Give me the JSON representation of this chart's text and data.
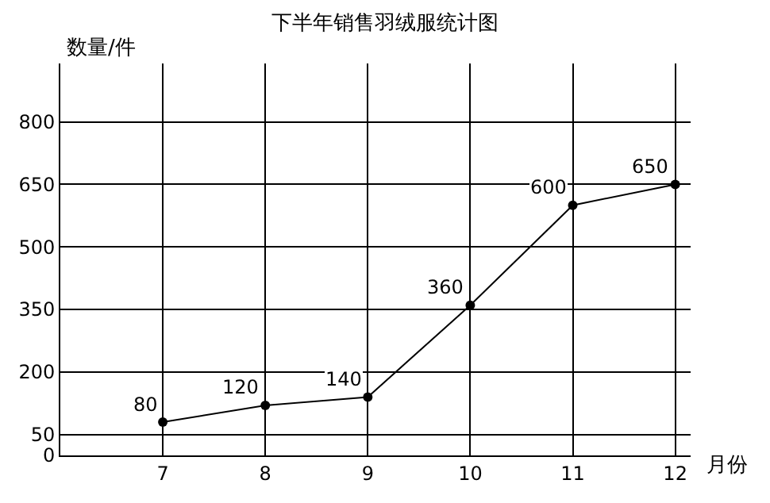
{
  "chart_data": {
    "type": "line",
    "title": "下半年销售羽绒服统计图",
    "xlabel": "月份",
    "ylabel": "数量/件",
    "x": [
      7,
      8,
      9,
      10,
      11,
      12
    ],
    "series": [
      {
        "color": "#000000",
        "values": [
          80,
          120,
          140,
          360,
          600,
          650
        ]
      }
    ],
    "xlim": [
      6,
      12.15
    ],
    "xticks": [
      7,
      8,
      9,
      10,
      11,
      12
    ],
    "ylim": [
      0,
      940
    ],
    "yticks": [
      0,
      50,
      200,
      350,
      500,
      650,
      800
    ],
    "data_labels": true,
    "grid": true,
    "marker": "circle",
    "line_style": "solid"
  }
}
